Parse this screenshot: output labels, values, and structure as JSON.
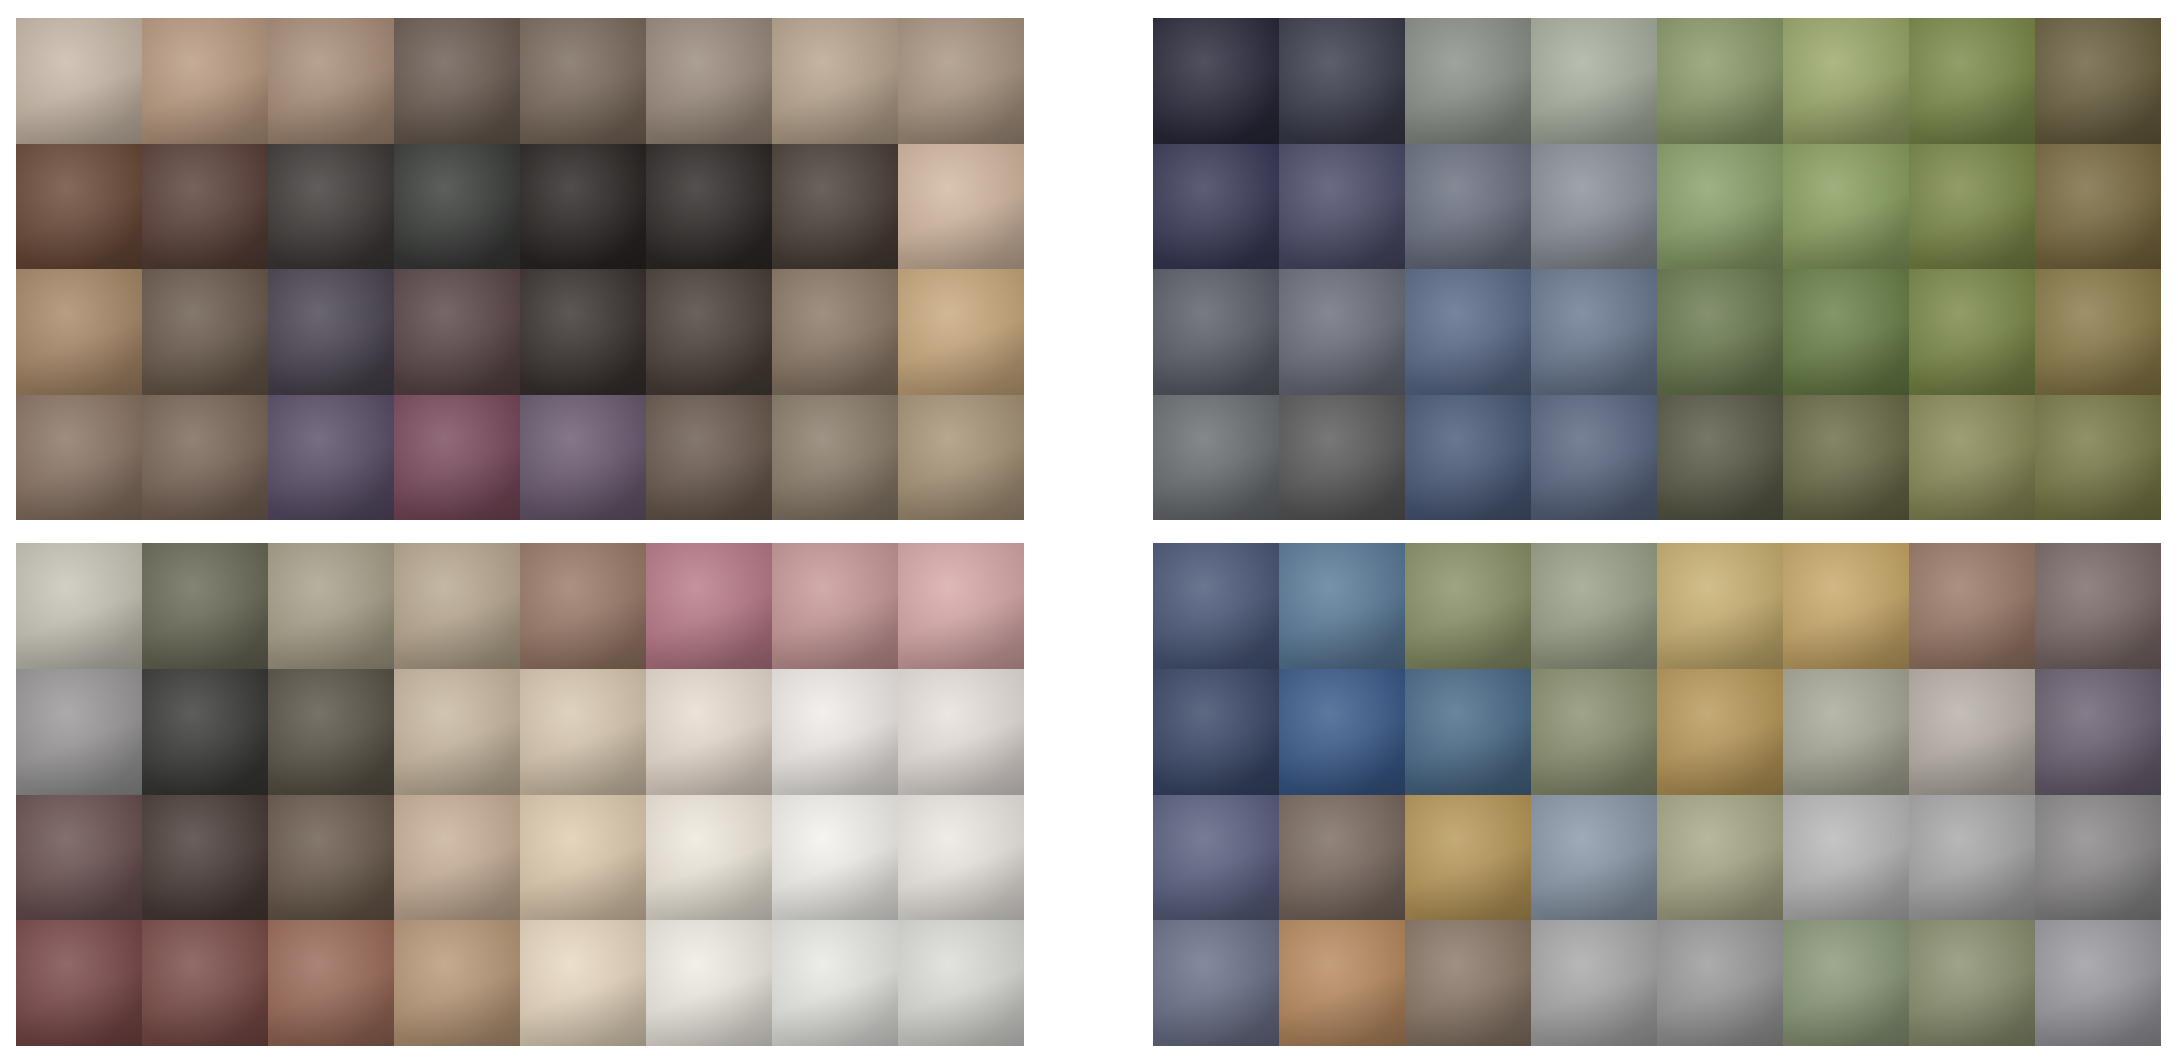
{
  "figure": {
    "panels": [
      {
        "id": "faces",
        "rows": [
          [
            "#c9b9a8",
            "#b89a80",
            "#a88d78",
            "#6a5c52",
            "#7a6a5c",
            "#9a8a7c",
            "#b8a48e",
            "#a89480"
          ],
          [
            "#6a4a38",
            "#5a4038",
            "#3e3a38",
            "#3a3c3a",
            "#2a2624",
            "#2e2a28",
            "#4a4038",
            "#d2b8a0"
          ],
          [
            "#a88868",
            "#6a5a4c",
            "#4a4450",
            "#5a4648",
            "#3a3230",
            "#4a4038",
            "#8a7866",
            "#c8a87c"
          ],
          [
            "#8a7464",
            "#7a6658",
            "#5a4e68",
            "#7a4a5c",
            "#6a5a70",
            "#6a5a4e",
            "#8a7c6a",
            "#a89478"
          ]
        ]
      },
      {
        "id": "objects",
        "rows": [
          [
            "#2a2a3c",
            "#3a3c4c",
            "#8a9088",
            "#a8b0a0",
            "#8a9a6a",
            "#9aa86a",
            "#7a8a4a",
            "#6a6040"
          ],
          [
            "#3a3a58",
            "#4a4c68",
            "#6a7080",
            "#8a9098",
            "#8aa06a",
            "#8aa060",
            "#7a8848",
            "#7a6a40"
          ],
          [
            "#5a5e68",
            "#6a6e7a",
            "#5a6a88",
            "#6a7890",
            "#6a7a50",
            "#6a8048",
            "#7a8848",
            "#8a7a48"
          ],
          [
            "#6a6e72",
            "#5a5a5a",
            "#4a5a78",
            "#5a6680",
            "#5a5a48",
            "#6a6a48",
            "#8a8a58",
            "#7a7a48"
          ]
        ]
      },
      {
        "id": "bedrooms",
        "rows": [
          [
            "#c8c4b8",
            "#6a6a58",
            "#a8a08a",
            "#b8a890",
            "#9a7a68",
            "#b87a88",
            "#c89898",
            "#d8a8a8"
          ],
          [
            "#9a9898",
            "#3a3a38",
            "#5a5448",
            "#c8b8a0",
            "#d8c8b0",
            "#e8dcd0",
            "#f0ece8",
            "#e8e0dc"
          ],
          [
            "#6a5050",
            "#4a3c38",
            "#6a5a4c",
            "#c8b098",
            "#e0ccb0",
            "#efe8dc",
            "#f4f2ee",
            "#ece8e2"
          ],
          [
            "#7a4848",
            "#7a4c48",
            "#9a6a58",
            "#b89878",
            "#e8d8c0",
            "#f0ece4",
            "#e8e8e4",
            "#dcdcd8"
          ]
        ]
      },
      {
        "id": "churches",
        "rows": [
          [
            "#4a5878",
            "#5a7a98",
            "#8a9068",
            "#9aa088",
            "#c8b070",
            "#c8a868",
            "#9a7a68",
            "#7a6a68"
          ],
          [
            "#3a4868",
            "#3a5a8a",
            "#4a6a88",
            "#8a9070",
            "#b89858",
            "#a8a898",
            "#b8b0a8",
            "#6a6070"
          ],
          [
            "#5a6080",
            "#7a6a60",
            "#b89858",
            "#8a98a8",
            "#a8a888",
            "#b8b8b8",
            "#a8a8a8",
            "#8a8888"
          ],
          [
            "#6a7088",
            "#b88a60",
            "#8a7868",
            "#a8a8a8",
            "#9a9a9a",
            "#8a9878",
            "#8a9070",
            "#9a9aa0"
          ]
        ]
      }
    ]
  }
}
